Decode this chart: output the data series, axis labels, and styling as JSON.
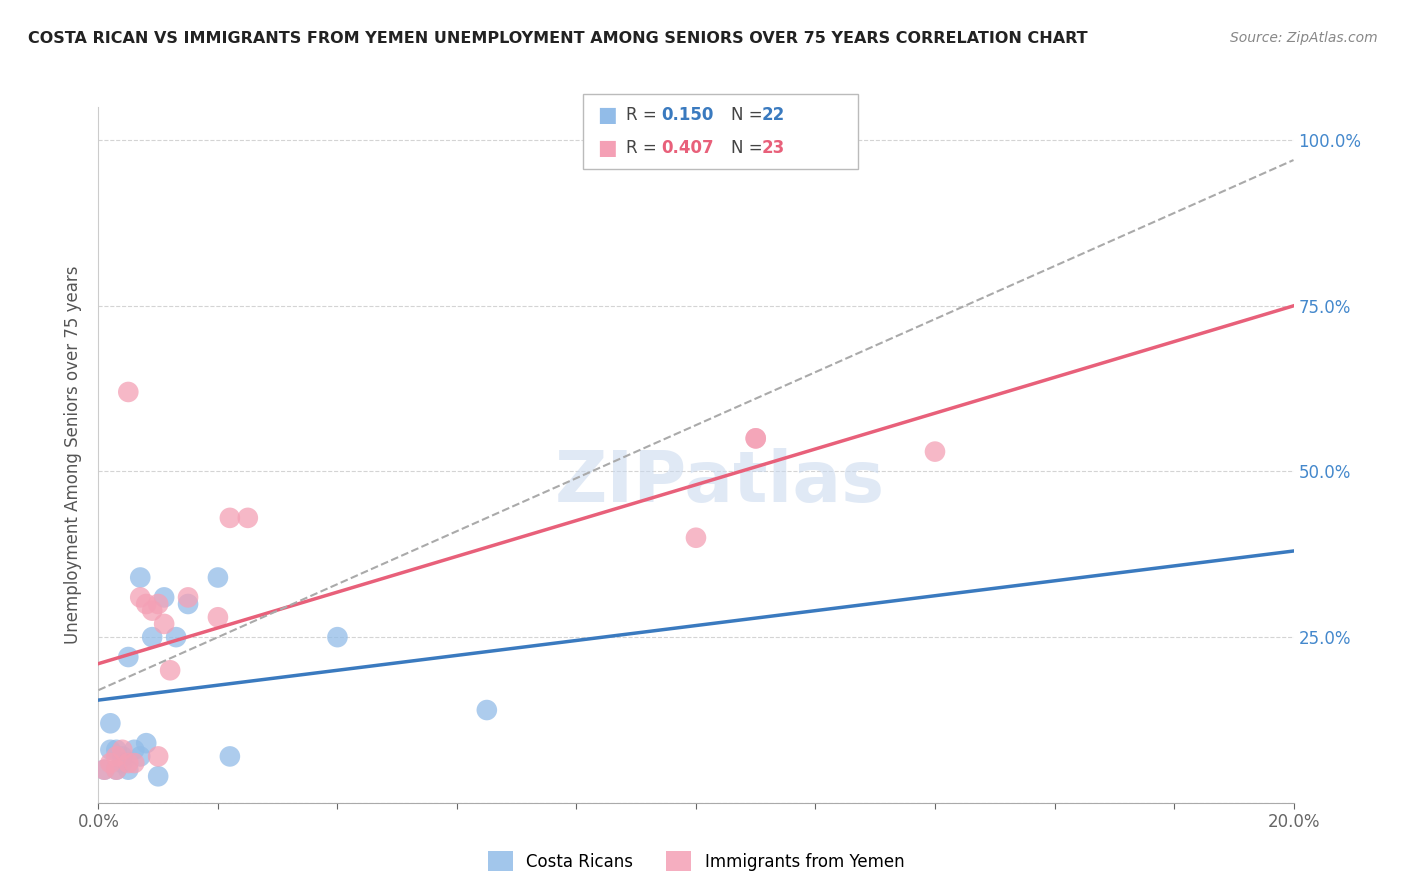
{
  "title": "COSTA RICAN VS IMMIGRANTS FROM YEMEN UNEMPLOYMENT AMONG SENIORS OVER 75 YEARS CORRELATION CHART",
  "source": "Source: ZipAtlas.com",
  "ylabel": "Unemployment Among Seniors over 75 years",
  "blue_color": "#92bce8",
  "pink_color": "#f4a0b5",
  "trendline_blue_color": "#3a7abf",
  "trendline_pink_color": "#e8607a",
  "trendline_dashed_color": "#aaaaaa",
  "blue_scatter_x": [
    0.001,
    0.002,
    0.002,
    0.003,
    0.003,
    0.004,
    0.004,
    0.005,
    0.005,
    0.006,
    0.007,
    0.007,
    0.008,
    0.009,
    0.01,
    0.011,
    0.013,
    0.015,
    0.02,
    0.022,
    0.04,
    0.065
  ],
  "blue_scatter_y": [
    0.05,
    0.08,
    0.12,
    0.05,
    0.08,
    0.06,
    0.07,
    0.05,
    0.22,
    0.08,
    0.07,
    0.34,
    0.09,
    0.25,
    0.04,
    0.31,
    0.25,
    0.3,
    0.34,
    0.07,
    0.25,
    0.14
  ],
  "pink_scatter_x": [
    0.001,
    0.002,
    0.003,
    0.003,
    0.004,
    0.005,
    0.005,
    0.006,
    0.007,
    0.008,
    0.009,
    0.01,
    0.01,
    0.011,
    0.012,
    0.015,
    0.02,
    0.022,
    0.025,
    0.1,
    0.11,
    0.11,
    0.14
  ],
  "pink_scatter_y": [
    0.05,
    0.06,
    0.05,
    0.07,
    0.08,
    0.06,
    0.62,
    0.06,
    0.31,
    0.3,
    0.29,
    0.07,
    0.3,
    0.27,
    0.2,
    0.31,
    0.28,
    0.43,
    0.43,
    0.4,
    0.55,
    0.55,
    0.53
  ],
  "blue_trend_x0": 0.0,
  "blue_trend_y0": 0.155,
  "blue_trend_x1": 0.2,
  "blue_trend_y1": 0.38,
  "pink_trend_x0": 0.0,
  "pink_trend_y0": 0.21,
  "pink_trend_x1": 0.2,
  "pink_trend_y1": 0.75,
  "dashed_trend_x0": 0.0,
  "dashed_trend_y0": 0.17,
  "dashed_trend_x1": 0.2,
  "dashed_trend_y1": 0.97,
  "xmin": 0.0,
  "xmax": 0.2,
  "ymin": 0.0,
  "ymax": 1.05,
  "right_ytick_labels": [
    "25.0%",
    "50.0%",
    "75.0%",
    "100.0%"
  ],
  "right_ytick_values": [
    0.25,
    0.5,
    0.75,
    1.0
  ],
  "legend_blue_r": "0.150",
  "legend_blue_n": "22",
  "legend_pink_r": "0.407",
  "legend_pink_n": "23",
  "legend_label_blue": "Costa Ricans",
  "legend_label_pink": "Immigrants from Yemen",
  "watermark": "ZIPatlas"
}
